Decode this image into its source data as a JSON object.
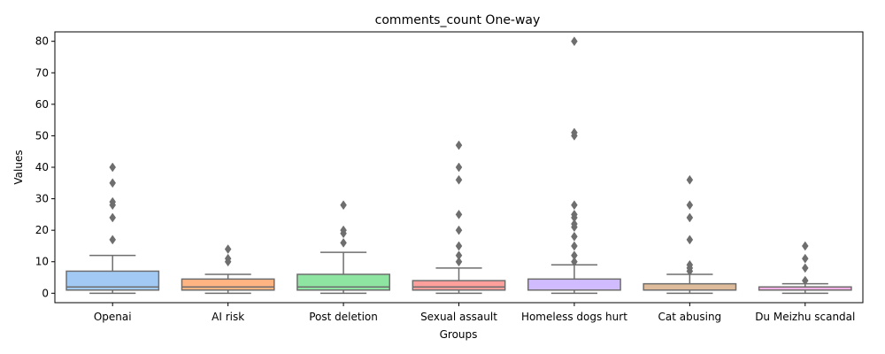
{
  "chart_data": {
    "type": "box",
    "title": "comments_count One-way",
    "xlabel": "Groups",
    "ylabel": "Values",
    "ylim": [
      -3,
      83
    ],
    "yticks": [
      0,
      10,
      20,
      30,
      40,
      50,
      60,
      70,
      80
    ],
    "grid": false,
    "groups": [
      {
        "name": "Openai",
        "color": "#a1c9f4",
        "whisker_low": 0,
        "q1": 1,
        "median": 2,
        "q3": 7,
        "whisker_high": 12,
        "outliers": [
          17,
          24,
          28,
          29,
          35,
          40
        ]
      },
      {
        "name": "AI risk",
        "color": "#ffb482",
        "whisker_low": 0,
        "q1": 1,
        "median": 2,
        "q3": 4.5,
        "whisker_high": 6,
        "outliers": [
          10,
          11,
          14
        ]
      },
      {
        "name": "Post deletion",
        "color": "#8de5a1",
        "whisker_low": 0,
        "q1": 1,
        "median": 2,
        "q3": 6,
        "whisker_high": 13,
        "outliers": [
          16,
          19,
          20,
          28
        ]
      },
      {
        "name": "Sexual assault",
        "color": "#ff9f9b",
        "whisker_low": 0,
        "q1": 1,
        "median": 2,
        "q3": 4,
        "whisker_high": 8,
        "outliers": [
          10,
          12,
          15,
          20,
          25,
          36,
          40,
          47
        ]
      },
      {
        "name": "Homeless dogs hurt",
        "color": "#d0bbff",
        "whisker_low": 0,
        "q1": 1,
        "median": 1,
        "q3": 4.5,
        "whisker_high": 9,
        "outliers": [
          10,
          12,
          15,
          18,
          21,
          22,
          24,
          25,
          28,
          50,
          51,
          80
        ]
      },
      {
        "name": "Cat abusing",
        "color": "#debb9b",
        "whisker_low": 0,
        "q1": 1,
        "median": 1,
        "q3": 3,
        "whisker_high": 6,
        "outliers": [
          7,
          8,
          9,
          17,
          24,
          28,
          36
        ]
      },
      {
        "name": "Du Meizhu scandal",
        "color": "#fab0e4",
        "whisker_low": 0,
        "q1": 1,
        "median": 1,
        "q3": 2,
        "whisker_high": 3,
        "outliers": [
          4,
          8,
          11,
          15
        ]
      }
    ]
  }
}
